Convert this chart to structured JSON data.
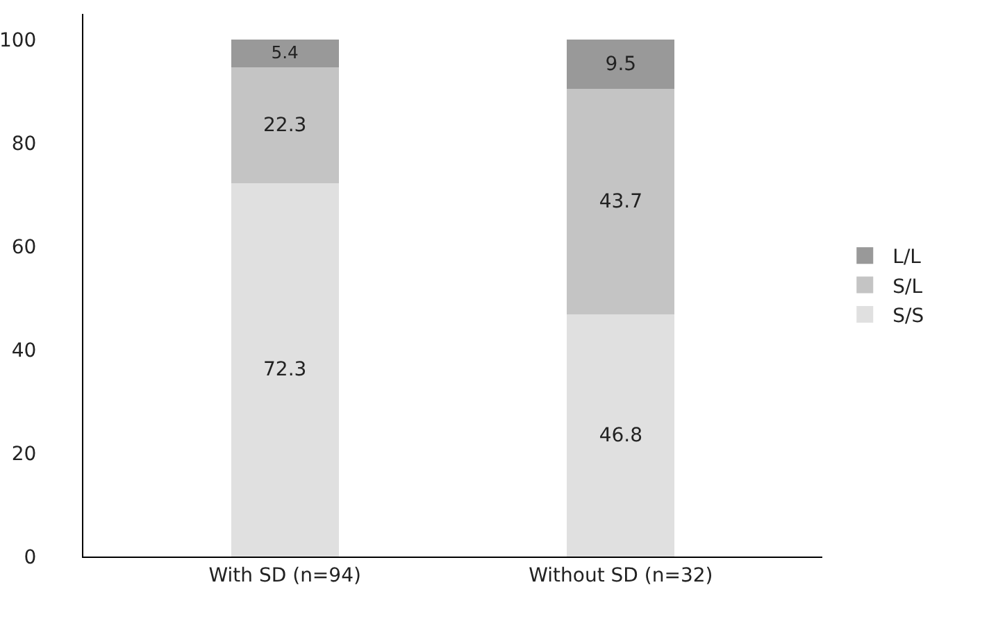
{
  "chart_data": {
    "type": "bar",
    "stacked": true,
    "categories": [
      "With SD (n=94)",
      "Without SD (n=32)"
    ],
    "series": [
      {
        "name": "S/S",
        "color": "#e0e0e0",
        "values": [
          72.3,
          46.8
        ]
      },
      {
        "name": "S/L",
        "color": "#c4c4c4",
        "values": [
          22.3,
          43.7
        ]
      },
      {
        "name": "L/L",
        "color": "#999999",
        "values": [
          5.4,
          9.5
        ]
      }
    ],
    "ylim": [
      0,
      105
    ],
    "yticks": [
      0,
      20,
      40,
      60,
      80,
      100
    ],
    "data_labels": true,
    "grid": false,
    "legend": "right"
  }
}
